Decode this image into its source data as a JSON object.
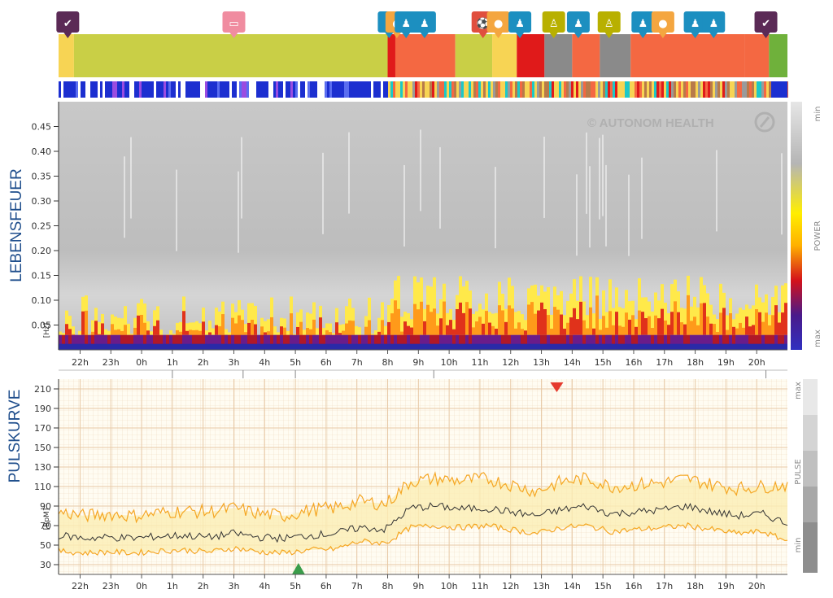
{
  "legend_side": {
    "spectro_min": "min",
    "spectro_label": "POWER",
    "spectro_max": "max",
    "pulse_max": "max",
    "pulse_label": "PULSE",
    "pulse_min": "min"
  },
  "watermark": "© AUTONOM HEALTH",
  "activity_icons": [
    {
      "name": "wake",
      "icon": "bed-up-icon",
      "color": "#5b2a56"
    },
    {
      "name": "sleep",
      "icon": "bed-icon",
      "color": "#f08ca0"
    },
    {
      "name": "meeting-1",
      "icon": "meeting-icon",
      "color": "#1c8fc0"
    },
    {
      "name": "meal-1",
      "icon": "meal-icon",
      "color": "#f4a640"
    },
    {
      "name": "meeting-2",
      "icon": "meeting-icon",
      "color": "#1c8fc0"
    },
    {
      "name": "meeting-3",
      "icon": "meeting-icon",
      "color": "#1c8fc0"
    },
    {
      "name": "sport",
      "icon": "soccer-icon",
      "color": "#e04f3e"
    },
    {
      "name": "meal-2",
      "icon": "meal-icon",
      "color": "#f4a640"
    },
    {
      "name": "meeting-4",
      "icon": "meeting-icon",
      "color": "#1c8fc0"
    },
    {
      "name": "walk-1",
      "icon": "walk-icon",
      "color": "#b8b000"
    },
    {
      "name": "meeting-5",
      "icon": "meeting-icon",
      "color": "#1c8fc0"
    },
    {
      "name": "walk-2",
      "icon": "walk-icon",
      "color": "#b8b000"
    },
    {
      "name": "meeting-6",
      "icon": "meeting-icon",
      "color": "#1c8fc0"
    },
    {
      "name": "meal-3",
      "icon": "meal-icon",
      "color": "#f4a640"
    },
    {
      "name": "meeting-7",
      "icon": "meeting-icon",
      "color": "#1c8fc0"
    },
    {
      "name": "meeting-8",
      "icon": "meeting-icon",
      "color": "#1c8fc0"
    },
    {
      "name": "wake-2",
      "icon": "bed-up-icon",
      "color": "#5b2a56"
    }
  ],
  "chart_data": [
    {
      "type": "heatmap",
      "title": "",
      "ylabel": "LEBENSFEUER",
      "yunit": "[Hz]",
      "xlabel": "",
      "x_ticks": [
        "22h",
        "23h",
        "0h",
        "1h",
        "2h",
        "3h",
        "4h",
        "5h",
        "6h",
        "7h",
        "8h",
        "9h",
        "10h",
        "11h",
        "12h",
        "13h",
        "14h",
        "15h",
        "16h",
        "17h",
        "18h",
        "19h",
        "20h"
      ],
      "y_ticks": [
        0.05,
        0.1,
        0.15,
        0.2,
        0.25,
        0.3,
        0.35,
        0.4,
        0.45
      ],
      "y_tick_labels": [
        "0.05",
        "0.10",
        "0.15",
        "0.20",
        "0.25",
        "0.30",
        "0.35",
        "0.40",
        "0.45"
      ],
      "ylim": [
        0,
        0.5
      ],
      "colorscale_label": "POWER",
      "sleep_band": {
        "start_hour": 21.3,
        "end_hour": 8.0,
        "freq_low": 0.26,
        "freq_high": 0.29
      },
      "power_profile_note": "high power below 0.05 Hz throughout, strong 0.05-0.12 Hz activity during the day"
    },
    {
      "type": "line",
      "title": "",
      "ylabel": "PULSKURVE",
      "yunit": "[BpM]",
      "x_ticks": [
        "22h",
        "23h",
        "0h",
        "1h",
        "2h",
        "3h",
        "4h",
        "5h",
        "6h",
        "7h",
        "8h",
        "9h",
        "10h",
        "11h",
        "12h",
        "13h",
        "14h",
        "15h",
        "16h",
        "17h",
        "18h",
        "19h",
        "20h"
      ],
      "y_ticks": [
        30,
        50,
        70,
        90,
        110,
        130,
        150,
        170,
        190,
        210
      ],
      "y_tick_labels": [
        "30",
        "50",
        "70",
        "90",
        "110",
        "130",
        "150",
        "170",
        "190",
        "210"
      ],
      "ylim": [
        20,
        220
      ],
      "series": [
        {
          "key": "upper",
          "color": "#f5a623",
          "values": [
            84,
            80,
            82,
            80,
            83,
            85,
            84,
            88,
            82,
            80,
            86,
            88,
            95,
            92,
            115,
            118,
            116,
            118,
            112,
            105,
            115,
            118,
            110,
            112,
            114,
            118,
            112,
            108,
            110,
            112
          ]
        },
        {
          "key": "mean",
          "color": "#333333",
          "values": [
            60,
            57,
            58,
            57,
            59,
            60,
            58,
            62,
            58,
            57,
            60,
            62,
            68,
            66,
            88,
            90,
            87,
            88,
            84,
            80,
            86,
            90,
            82,
            84,
            86,
            90,
            84,
            80,
            82,
            72
          ]
        },
        {
          "key": "lower",
          "color": "#f5a623",
          "values": [
            44,
            42,
            43,
            42,
            44,
            45,
            43,
            47,
            43,
            42,
            45,
            46,
            54,
            52,
            68,
            70,
            68,
            70,
            66,
            62,
            68,
            70,
            64,
            66,
            68,
            70,
            66,
            62,
            64,
            54
          ]
        }
      ],
      "markers": [
        {
          "kind": "max",
          "hour": 13.5,
          "value": 210,
          "color": "#e53a2d"
        },
        {
          "kind": "min",
          "hour": 5.1,
          "value": 30,
          "color": "#3a9d4a"
        }
      ]
    }
  ]
}
